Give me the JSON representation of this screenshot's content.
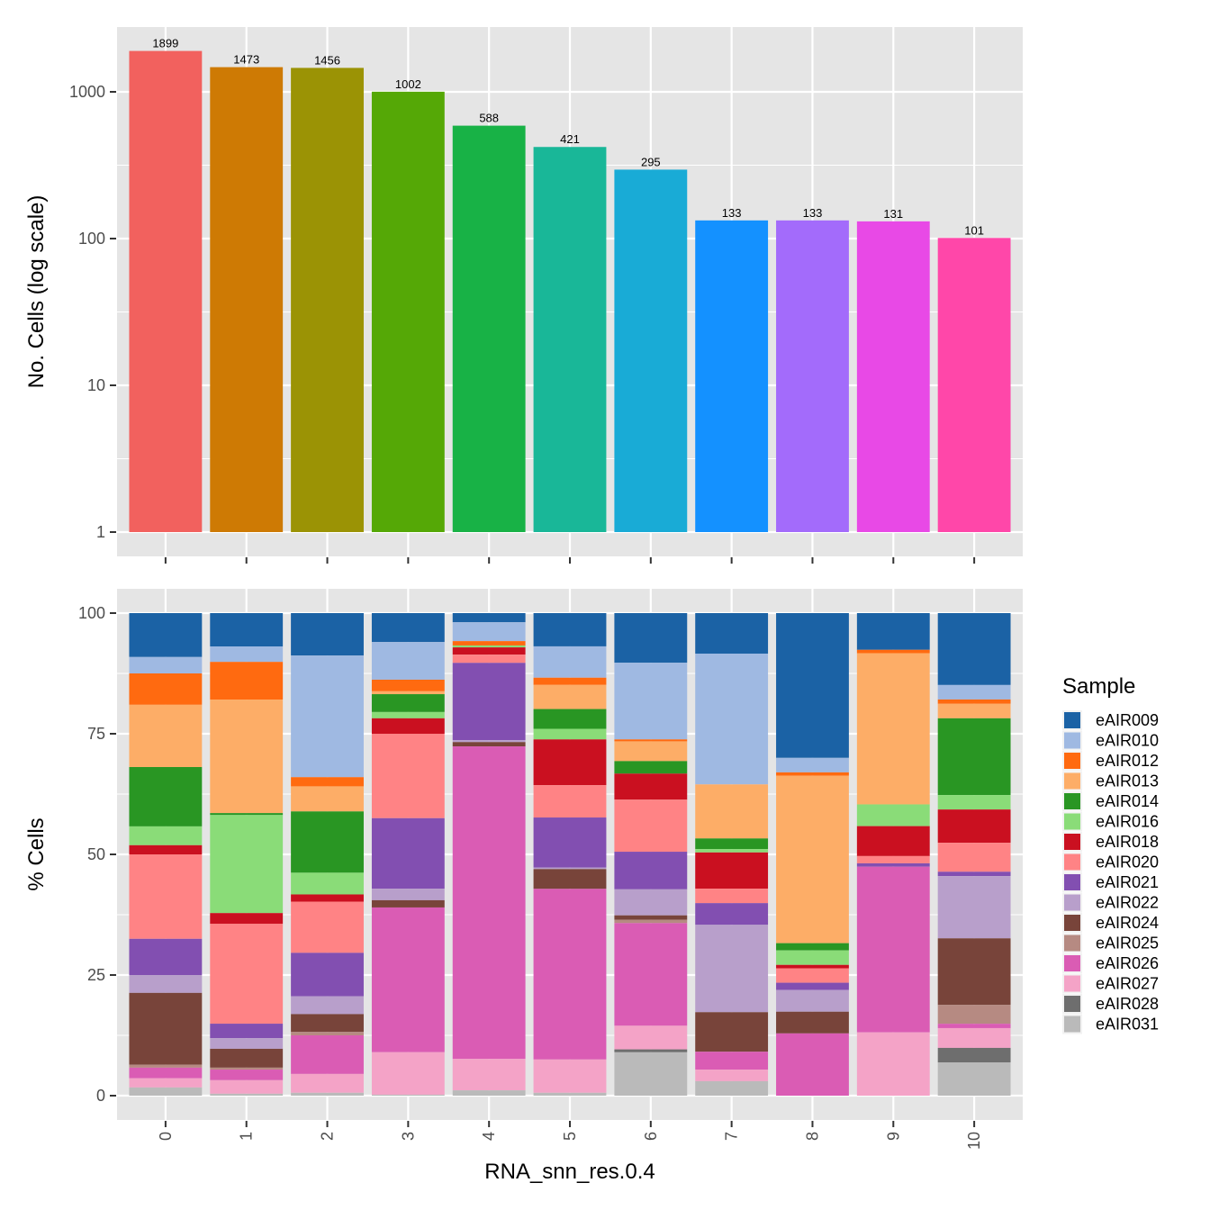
{
  "chart_data": [
    {
      "type": "bar",
      "panel": "top",
      "title": "",
      "xlabel": "",
      "ylabel": "No. Cells (log scale)",
      "yscale": "log10",
      "ylim": [
        1,
        2600
      ],
      "yticks": [
        1,
        10,
        100,
        1000
      ],
      "ytick_labels": [
        "1",
        "10",
        "100",
        "1000"
      ],
      "grid": true,
      "categories": [
        "0",
        "1",
        "2",
        "3",
        "4",
        "5",
        "6",
        "7",
        "8",
        "9",
        "10"
      ],
      "values": [
        1899,
        1473,
        1456,
        1002,
        588,
        421,
        295,
        133,
        133,
        131,
        101
      ],
      "data_labels": [
        "1899",
        "1473",
        "1456",
        "1002",
        "588",
        "421",
        "295",
        "133",
        "133",
        "131",
        "101"
      ],
      "colors": [
        "#F8766D",
        "#D39200",
        "#93AA00",
        "#00BA38",
        "#00C19F",
        "#00B9E3",
        "#00ADFA",
        "#619CFF",
        "#DB72FB",
        "#FF61C3",
        "#FF61C3"
      ],
      "bar_colors": [
        "#F2615E",
        "#CE7A04",
        "#9B9305",
        "#55A806",
        "#18B246",
        "#19B798",
        "#19ABD6",
        "#1491FF",
        "#A36BFB",
        "#E849E6",
        "#FF47A9"
      ]
    },
    {
      "type": "bar",
      "stacked": true,
      "panel": "bottom",
      "title": "",
      "xlabel": "RNA_snn_res.0.4",
      "ylabel": "% Cells",
      "ylim": [
        0,
        100
      ],
      "yticks": [
        0,
        25,
        50,
        75,
        100
      ],
      "ytick_labels": [
        "0",
        "25",
        "50",
        "75",
        "100"
      ],
      "grid": true,
      "categories": [
        "0",
        "1",
        "2",
        "3",
        "4",
        "5",
        "6",
        "7",
        "8",
        "9",
        "10"
      ],
      "legend": {
        "title": "Sample",
        "position": "right"
      },
      "series": [
        {
          "name": "eAIR009",
          "color": "#1B62A5",
          "values": [
            9.1,
            6.9,
            8.8,
            6.0,
            1.9,
            6.9,
            10.3,
            8.4,
            30.0,
            7.6,
            14.9
          ]
        },
        {
          "name": "eAIR010",
          "color": "#9FB9E2",
          "values": [
            3.4,
            3.2,
            25.2,
            7.8,
            3.9,
            6.5,
            15.9,
            27.1,
            3.0,
            0.0,
            3.0
          ]
        },
        {
          "name": "eAIR012",
          "color": "#FF6A10",
          "values": [
            6.5,
            7.8,
            1.9,
            2.4,
            0.9,
            1.5,
            0.4,
            0.0,
            0.7,
            0.7,
            0.9
          ]
        },
        {
          "name": "eAIR013",
          "color": "#FDAD67",
          "values": [
            12.9,
            23.5,
            5.2,
            0.6,
            0.0,
            5.0,
            4.1,
            11.2,
            34.7,
            31.3,
            3.0
          ]
        },
        {
          "name": "eAIR014",
          "color": "#299623",
          "values": [
            12.3,
            0.4,
            12.7,
            3.7,
            0.0,
            4.1,
            2.6,
            2.2,
            1.5,
            0.0,
            15.9
          ]
        },
        {
          "name": "eAIR016",
          "color": "#8ADC78",
          "values": [
            3.9,
            20.3,
            4.5,
            1.3,
            0.4,
            2.2,
            0.0,
            0.7,
            3.0,
            4.5,
            3.0
          ]
        },
        {
          "name": "eAIR018",
          "color": "#CA1020",
          "values": [
            1.9,
            2.2,
            1.5,
            3.2,
            1.5,
            9.5,
            5.4,
            7.5,
            0.7,
            6.2,
            6.9
          ]
        },
        {
          "name": "eAIR020",
          "color": "#FF8385",
          "values": [
            17.5,
            20.7,
            10.6,
            17.5,
            1.7,
            6.7,
            10.8,
            3.0,
            3.0,
            1.5,
            6.0
          ]
        },
        {
          "name": "eAIR021",
          "color": "#824FB1",
          "values": [
            7.5,
            3.0,
            9.0,
            14.6,
            16.0,
            10.4,
            7.8,
            4.5,
            1.5,
            0.7,
            0.9
          ]
        },
        {
          "name": "eAIR022",
          "color": "#B89FCB",
          "values": [
            3.7,
            2.2,
            3.7,
            2.4,
            0.4,
            0.3,
            5.4,
            18.1,
            4.5,
            0.0,
            12.9
          ]
        },
        {
          "name": "eAIR024",
          "color": "#78443A",
          "values": [
            14.9,
            3.9,
            3.7,
            1.5,
            0.9,
            4.1,
            0.9,
            8.2,
            4.5,
            0.0,
            13.8
          ]
        },
        {
          "name": "eAIR025",
          "color": "#B68A82",
          "values": [
            0.6,
            0.4,
            0.7,
            0.0,
            0.0,
            0.0,
            0.7,
            0.0,
            0.0,
            0.0,
            3.9
          ]
        },
        {
          "name": "eAIR026",
          "color": "#DA5CB4",
          "values": [
            2.2,
            2.2,
            8.0,
            30.0,
            64.7,
            35.4,
            21.3,
            3.7,
            12.9,
            34.3,
            0.9
          ]
        },
        {
          "name": "eAIR027",
          "color": "#F4A3C7",
          "values": [
            1.9,
            2.8,
            3.9,
            8.8,
            6.5,
            6.9,
            4.9,
            2.4,
            0.0,
            13.1,
            4.1
          ]
        },
        {
          "name": "eAIR028",
          "color": "#6E6E6E",
          "values": [
            0.0,
            0.0,
            0.0,
            0.0,
            0.0,
            0.0,
            0.6,
            0.0,
            0.0,
            0.0,
            3.0
          ]
        },
        {
          "name": "eAIR031",
          "color": "#BABABA",
          "values": [
            1.7,
            0.4,
            0.6,
            0.2,
            1.1,
            0.6,
            9.0,
            3.0,
            0.0,
            0.0,
            6.9
          ]
        }
      ]
    }
  ],
  "colors": {
    "panel_bg": "#E5E5E5",
    "grid": "#FFFFFF",
    "tick": "#333333",
    "tick_text": "#4D4D4D"
  }
}
